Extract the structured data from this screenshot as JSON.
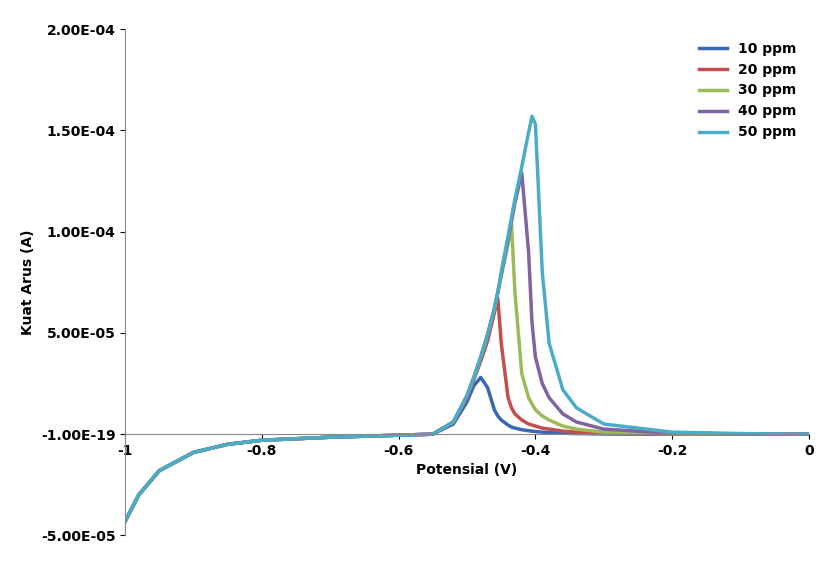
{
  "chart_data": {
    "type": "line",
    "x_label": "Potensial (V)",
    "y_label": "Kuat Arus (A)",
    "x": [
      -1,
      -0.98,
      -0.95,
      -0.9,
      -0.85,
      -0.8,
      -0.7,
      -0.6,
      -0.55,
      -0.52,
      -0.5,
      -0.49,
      -0.48,
      -0.47,
      -0.46,
      -0.455,
      -0.45,
      -0.44,
      -0.435,
      -0.43,
      -0.42,
      -0.41,
      -0.405,
      -0.4,
      -0.39,
      -0.38,
      -0.36,
      -0.34,
      -0.3,
      -0.2,
      -0.1,
      0
    ],
    "series": [
      {
        "name": "10 ppm",
        "color": "#3a67b5",
        "values": [
          -4.3e-05,
          -3e-05,
          -1.8e-05,
          -9e-06,
          -5e-06,
          -3e-06,
          -1.5e-06,
          -5e-07,
          0,
          5e-06,
          1.6e-05,
          2.4e-05,
          2.8e-05,
          2.3e-05,
          1.2e-05,
          9e-06,
          7e-06,
          4.5e-06,
          3.5e-06,
          3e-06,
          2.2e-06,
          1.7e-06,
          1.5e-06,
          1.3e-06,
          1e-06,
          8e-07,
          5e-07,
          3e-07,
          1e-07,
          0,
          0,
          0
        ]
      },
      {
        "name": "20 ppm",
        "color": "#c0504d",
        "values": [
          -4.3e-05,
          -3e-05,
          -1.8e-05,
          -9e-06,
          -5e-06,
          -3e-06,
          -1.5e-06,
          -5e-07,
          0,
          6e-06,
          1.8e-05,
          2.7e-05,
          3.6e-05,
          4.6e-05,
          6e-05,
          6.7e-05,
          4.5e-05,
          1.8e-05,
          1.3e-05,
          1e-05,
          7e-06,
          5e-06,
          4.5e-06,
          4e-06,
          3e-06,
          2.5e-06,
          1.5e-06,
          1e-06,
          4e-07,
          1e-07,
          0,
          0
        ]
      },
      {
        "name": "30 ppm",
        "color": "#9bbb59",
        "values": [
          -4.3e-05,
          -3e-05,
          -1.8e-05,
          -9e-06,
          -5e-06,
          -3e-06,
          -1.5e-06,
          -5e-07,
          0,
          6e-06,
          1.9e-05,
          2.8e-05,
          3.8e-05,
          4.9e-05,
          6.2e-05,
          7e-05,
          7.8e-05,
          9.4e-05,
          0.000104,
          7e-05,
          3e-05,
          1.8e-05,
          1.5e-05,
          1.2e-05,
          9e-06,
          7e-06,
          4e-06,
          2.5e-06,
          1e-06,
          2e-07,
          0,
          0
        ]
      },
      {
        "name": "40 ppm",
        "color": "#8064a2",
        "values": [
          -4.3e-05,
          -3e-05,
          -1.8e-05,
          -9e-06,
          -5e-06,
          -3e-06,
          -1.5e-06,
          -5e-07,
          0,
          6e-06,
          1.9e-05,
          2.8e-05,
          3.8e-05,
          4.9e-05,
          6.2e-05,
          7e-05,
          7.9e-05,
          9.6e-05,
          0.000105,
          0.000114,
          0.000129,
          9e-05,
          5.5e-05,
          3.8e-05,
          2.5e-05,
          1.8e-05,
          1e-05,
          6e-06,
          2.5e-06,
          5e-07,
          1e-07,
          0
        ]
      },
      {
        "name": "50 ppm",
        "color": "#4bacc6",
        "values": [
          -4.3e-05,
          -3e-05,
          -1.8e-05,
          -9e-06,
          -5e-06,
          -3e-06,
          -1.5e-06,
          -5e-07,
          0,
          6e-06,
          1.9e-05,
          2.8e-05,
          3.8e-05,
          4.9e-05,
          6.2e-05,
          7e-05,
          8e-05,
          9.8e-05,
          0.000107,
          0.000116,
          0.000132,
          0.000149,
          0.000157,
          0.000153,
          8e-05,
          4.5e-05,
          2.2e-05,
          1.3e-05,
          5e-06,
          1e-06,
          3e-07,
          0
        ]
      }
    ],
    "xlim": [
      -1,
      0
    ],
    "xticks": [
      -1,
      -0.8,
      -0.6,
      -0.4,
      -0.2,
      0
    ],
    "ylim": [
      -5e-05,
      0.0002
    ],
    "yticks": [
      {
        "value": -5e-05,
        "label": "-5.00E-05"
      },
      {
        "value": -1e-19,
        "label": "-1.00E-19"
      },
      {
        "value": 5e-05,
        "label": "5.00E-05"
      },
      {
        "value": 0.0001,
        "label": "1.00E-04"
      },
      {
        "value": 0.00015,
        "label": "1.50E-04"
      },
      {
        "value": 0.0002,
        "label": "2.00E-04"
      }
    ],
    "legend": "upper right",
    "grid": false
  }
}
